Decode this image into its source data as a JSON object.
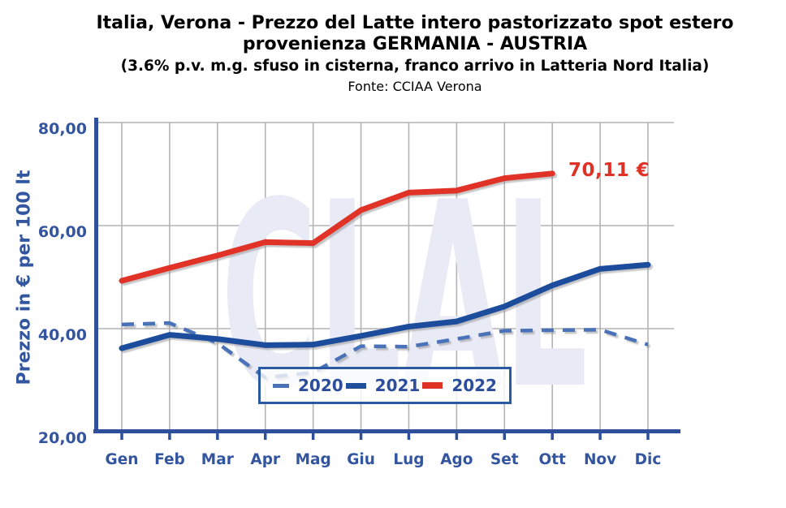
{
  "header": {
    "title_line1": "Italia, Verona - Prezzo del Latte intero pastorizzato spot estero",
    "title_line2": "provenienza GERMANIA - AUSTRIA",
    "subtitle": "(3.6% p.v. m.g. sfuso in cisterna, franco arrivo in Latteria Nord Italia)",
    "source": "Fonte: CCIAA Verona"
  },
  "chart_data": {
    "type": "line",
    "title": "Italia, Verona - Prezzo del Latte intero pastorizzato spot estero provenienza GERMANIA - AUSTRIA",
    "xlabel": "",
    "ylabel": "Prezzo in € per 100 lt",
    "ylim": [
      20,
      80
    ],
    "yticks": [
      {
        "value": 80,
        "label": "80,00"
      },
      {
        "value": 60,
        "label": "60,00"
      },
      {
        "value": 40,
        "label": "40,00"
      },
      {
        "value": 20,
        "label": "20,00"
      }
    ],
    "categories": [
      "Gen",
      "Feb",
      "Mar",
      "Apr",
      "Mag",
      "Giu",
      "Lug",
      "Ago",
      "Set",
      "Ott",
      "Nov",
      "Dic"
    ],
    "series": [
      {
        "name": "2020",
        "style": "dashed",
        "color": "#4a72b8",
        "values": [
          40.8,
          41.1,
          37.2,
          30.5,
          31.5,
          36.6,
          36.5,
          38.0,
          39.6,
          39.7,
          39.8,
          36.9
        ]
      },
      {
        "name": "2021",
        "style": "solid",
        "color": "#1e4e9c",
        "values": [
          36.2,
          38.8,
          38.0,
          36.8,
          36.9,
          38.6,
          40.4,
          41.4,
          44.3,
          48.4,
          51.6,
          52.4
        ]
      },
      {
        "name": "2022",
        "style": "solid",
        "color": "#e03127",
        "values": [
          49.3,
          51.8,
          54.2,
          56.8,
          56.6,
          63.0,
          66.4,
          66.8,
          69.2,
          70.11
        ]
      }
    ],
    "annotation": {
      "text": "70,11 €",
      "series": "2022",
      "category": "Ott",
      "value": 70.11
    },
    "legend_position": "bottom-center-inside",
    "grid": true,
    "watermark": "CLAL"
  },
  "colors": {
    "axis": "#2d4f9c",
    "tick_text": "#33549f",
    "grid": "#b3b3b6",
    "watermark": "#e8eaf6",
    "annotation": "#e03127",
    "legend_border": "#2b5aa5",
    "legend_text": "#2b4d9c"
  }
}
